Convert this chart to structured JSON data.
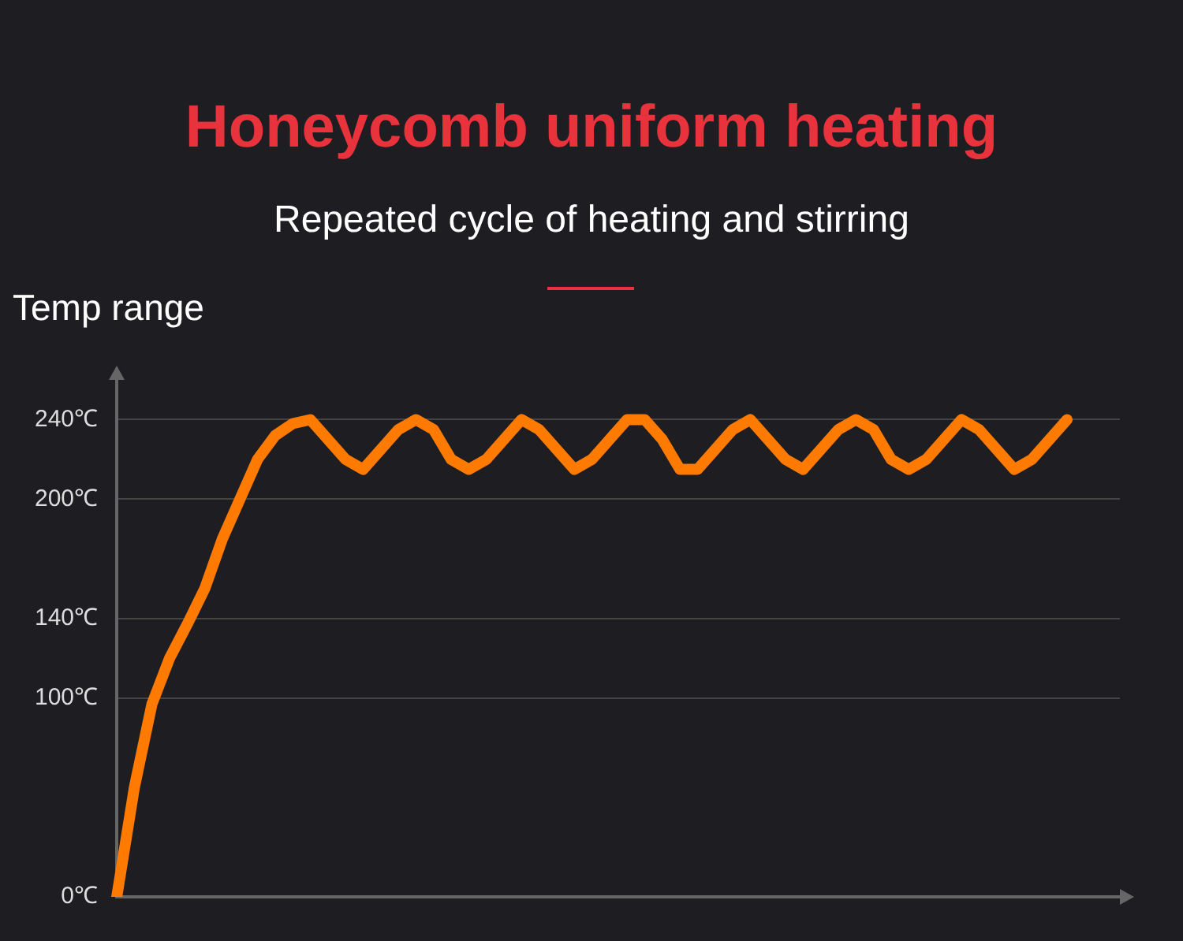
{
  "chart_data": {
    "type": "line",
    "title": "Honeycomb uniform heating",
    "subtitle": "Repeated cycle of heating and stirring",
    "ylabel": "Temp range",
    "categories": [
      null,
      null,
      null,
      null,
      null,
      null,
      null,
      null,
      null,
      null,
      null,
      null,
      null,
      null,
      null,
      null,
      null,
      null,
      null,
      null,
      null,
      null,
      null,
      null,
      null,
      null,
      null,
      null,
      null,
      null,
      null,
      null,
      null,
      null,
      null,
      null,
      null,
      null,
      null,
      null,
      null,
      null,
      null,
      null,
      null,
      null,
      null,
      null,
      null,
      null,
      null,
      null,
      null,
      null,
      null,
      null,
      null,
      null
    ],
    "series": [
      {
        "color": "#ff7a00",
        "values": [
          0,
          55,
          97,
          120,
          137,
          155,
          180,
          200,
          220,
          232,
          238,
          240,
          230,
          220,
          215,
          225,
          235,
          240,
          235,
          220,
          215,
          220,
          230,
          240,
          235,
          225,
          215,
          220,
          230,
          240,
          240,
          230,
          215,
          215,
          225,
          235,
          240,
          230,
          220,
          215,
          225,
          235,
          240,
          235,
          220,
          215,
          220,
          230,
          240,
          235,
          225,
          215,
          220,
          230,
          240,
          null,
          null,
          null
        ]
      }
    ],
    "ylim": [
      0,
      260
    ],
    "yticks": [
      {
        "value": 0,
        "label": "0℃"
      },
      {
        "value": 100,
        "label": "100℃"
      },
      {
        "value": 140,
        "label": "140℃"
      },
      {
        "value": 200,
        "label": "200℃"
      },
      {
        "value": 240,
        "label": "240℃"
      }
    ],
    "grid": "y",
    "legend": false,
    "tick_labels": "y",
    "marker": "none",
    "line_style": "solid"
  }
}
